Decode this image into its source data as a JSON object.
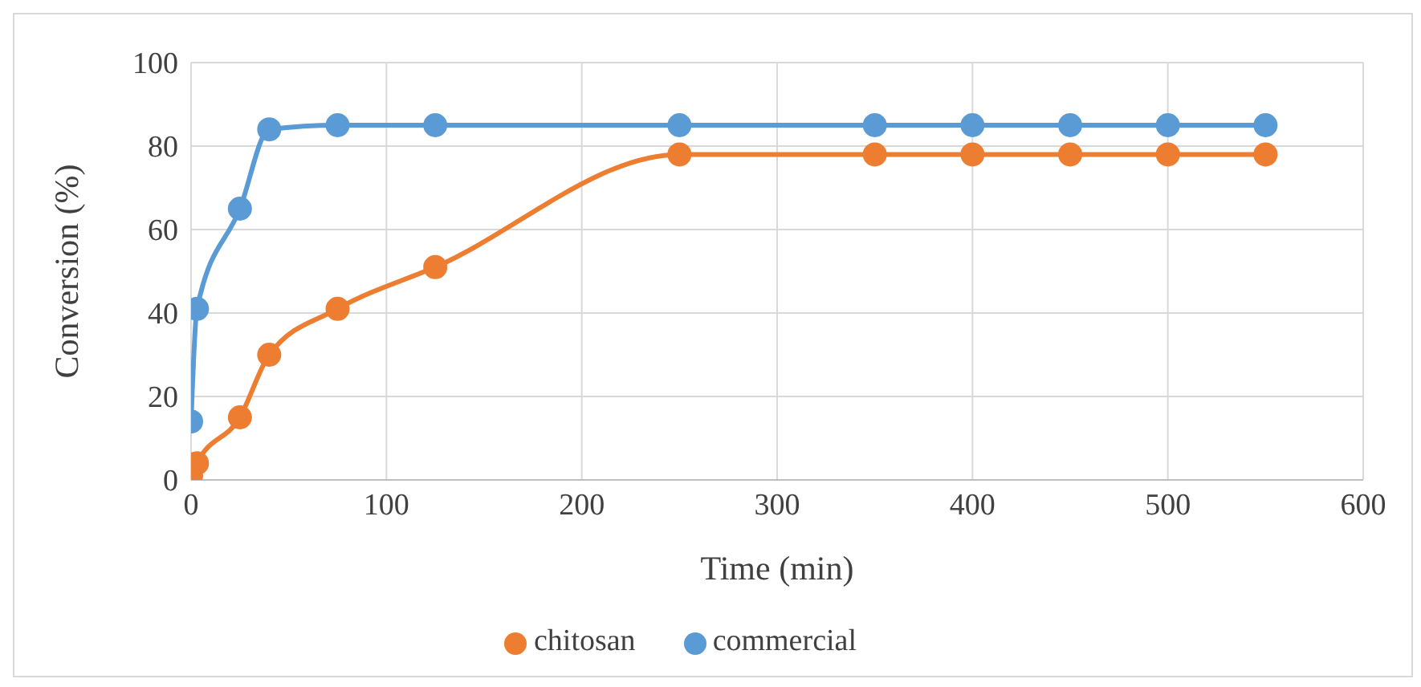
{
  "chart_data": {
    "type": "line",
    "xlabel": "Time (min)",
    "ylabel": "Conversion (%)",
    "xlim": [
      0,
      600
    ],
    "xticks": [
      0,
      100,
      200,
      300,
      400,
      500,
      600
    ],
    "ylim": [
      0,
      100
    ],
    "yticks": [
      0,
      20,
      40,
      60,
      80,
      100
    ],
    "grid": true,
    "legend": "bottom",
    "marker": "circle",
    "line_style": "solid",
    "series": [
      {
        "name": "commercial",
        "color": "#5b9bd5",
        "x": [
          0,
          3,
          25,
          40,
          75,
          125,
          250,
          350,
          400,
          450,
          500,
          550
        ],
        "values": [
          14,
          41,
          65,
          84,
          85,
          85,
          85,
          85,
          85,
          85,
          85,
          85
        ]
      },
      {
        "name": "chitosan",
        "color": "#ed7d31",
        "x": [
          0,
          3,
          25,
          40,
          75,
          125,
          250,
          350,
          400,
          450,
          500,
          550
        ],
        "values": [
          1,
          4,
          15,
          30,
          41,
          51,
          78,
          78,
          78,
          78,
          78,
          78
        ]
      }
    ]
  }
}
